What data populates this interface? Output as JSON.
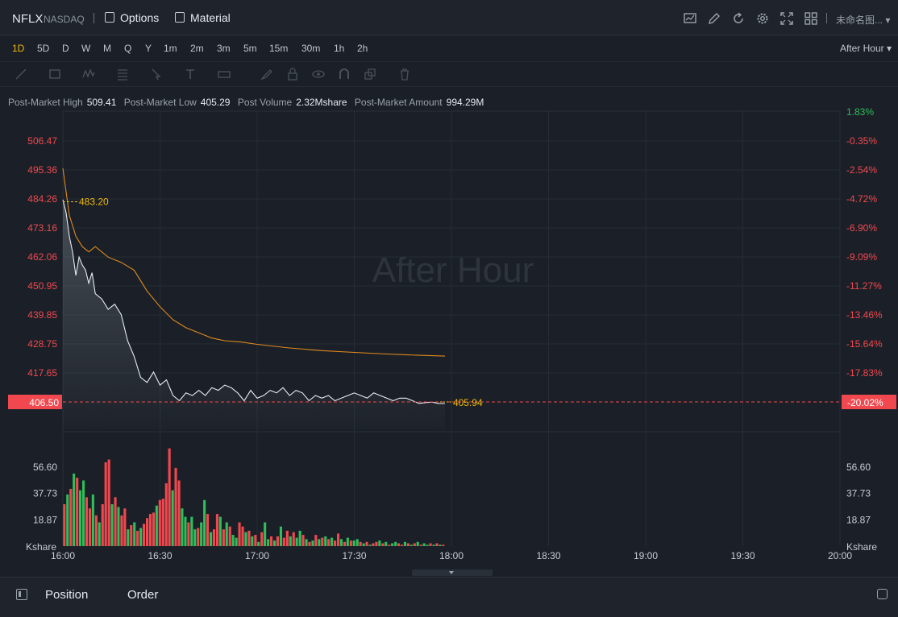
{
  "header": {
    "symbol": "NFLX",
    "exchange": "NASDAQ",
    "options_label": "Options",
    "material_label": "Material",
    "layout_name": "未命名图...",
    "icons": [
      "chart-settings-icon",
      "edit-icon",
      "refresh-icon",
      "gear-icon",
      "fullscreen-icon",
      "layout-grid-icon"
    ]
  },
  "intervals": {
    "items": [
      "1D",
      "5D",
      "D",
      "W",
      "M",
      "Q",
      "Y",
      "1m",
      "2m",
      "3m",
      "5m",
      "15m",
      "30m",
      "1h",
      "2h"
    ],
    "active": "1D",
    "session": "After Hour"
  },
  "stats": {
    "high_label": "Post-Market High",
    "high_value": "509.41",
    "low_label": "Post-Market Low",
    "low_value": "405.29",
    "volume_label": "Post Volume",
    "volume_value": "2.32Mshare",
    "amount_label": "Post-Market Amount",
    "amount_value": "994.29M"
  },
  "bottom": {
    "tabs": [
      "Position",
      "Order"
    ]
  },
  "colors": {
    "up": "#2fbe5a",
    "down": "#f0484e",
    "price_line": "#e8ecf0",
    "avg_line": "#e08a1e",
    "accent": "#f0b90b"
  },
  "chart_data": {
    "type": "line",
    "watermark": "After Hour",
    "price_axis": {
      "ticks": [
        "506.47",
        "495.36",
        "484.26",
        "473.16",
        "462.06",
        "450.95",
        "439.85",
        "428.75",
        "417.65"
      ],
      "range": [
        408,
        515
      ],
      "current_price": "406.50"
    },
    "percent_axis": {
      "ticks": [
        "1.83%",
        "-0.35%",
        "-2.54%",
        "-4.72%",
        "-6.90%",
        "-9.09%",
        "-11.27%",
        "-13.46%",
        "-15.64%",
        "-17.83%"
      ],
      "current": "-20.02%"
    },
    "time_axis": {
      "ticks": [
        "16:00",
        "16:30",
        "17:00",
        "17:30",
        "18:00",
        "18:30",
        "19:00",
        "19:30",
        "20:00"
      ],
      "range_minutes": [
        0,
        240
      ]
    },
    "annotations": {
      "open_label": "483.20",
      "last_label": "405.94"
    },
    "series": [
      {
        "x": [
          0,
          1,
          2,
          3,
          4,
          5,
          6,
          7,
          8,
          9,
          10,
          12,
          14,
          16,
          18,
          20,
          22,
          24,
          26,
          28,
          30,
          32,
          34,
          36,
          38,
          40,
          42,
          44,
          46,
          48,
          50,
          52,
          54,
          56,
          58,
          60,
          62,
          64,
          66,
          68,
          70,
          72,
          74,
          76,
          78,
          80,
          82,
          84,
          86,
          88,
          90,
          92,
          94,
          96,
          98,
          100,
          102,
          104,
          106,
          108,
          110,
          112,
          114,
          116,
          118
        ],
        "y": [
          484,
          479,
          470,
          464,
          455,
          462,
          459,
          457,
          452,
          456,
          448,
          446,
          442,
          444,
          440,
          430,
          424,
          416,
          414,
          418,
          413,
          415,
          409,
          407,
          410,
          409,
          411,
          409,
          412,
          411,
          413,
          412,
          410,
          407,
          411,
          408,
          409,
          411,
          410,
          412,
          409,
          411,
          410,
          407,
          409,
          408,
          409,
          407,
          408,
          409,
          410,
          409,
          408,
          410,
          409,
          408,
          407,
          408,
          408,
          407,
          406,
          406.3,
          406.5,
          406,
          405.94
        ]
      },
      {
        "x": [
          0,
          2,
          4,
          6,
          8,
          10,
          14,
          18,
          22,
          26,
          30,
          34,
          38,
          42,
          46,
          50,
          55,
          60,
          70,
          80,
          90,
          100,
          110,
          118
        ],
        "y": [
          496,
          478,
          470,
          466,
          464,
          466,
          462,
          460,
          457,
          449,
          443,
          438,
          435,
          433,
          431,
          430,
          429.5,
          428.6,
          427.2,
          426.2,
          425.5,
          424.9,
          424.4,
          424.1
        ]
      }
    ],
    "volume": {
      "axis_ticks": [
        "56.60",
        "37.73",
        "18.87"
      ],
      "unit_label": "Kshare",
      "max": 75,
      "values": [
        30,
        37,
        41,
        52,
        49,
        40,
        47,
        35,
        27,
        37,
        22,
        17,
        30,
        60,
        62,
        30,
        35,
        28,
        22,
        27,
        12,
        15,
        17,
        11,
        13,
        16,
        20,
        23,
        24,
        29,
        33,
        34,
        45,
        70,
        40,
        56,
        47,
        27,
        21,
        17,
        21,
        12,
        13,
        17,
        33,
        23,
        10,
        12,
        23,
        21,
        12,
        17,
        14,
        8,
        6,
        17,
        14,
        10,
        11,
        7,
        8,
        3,
        10,
        17,
        5,
        7,
        4,
        7,
        14,
        6,
        11,
        7,
        10,
        6,
        11,
        8,
        5,
        3,
        4,
        8,
        5,
        6,
        7,
        5,
        6,
        4,
        9,
        5,
        3,
        6,
        4,
        4,
        5,
        3,
        2,
        3,
        1,
        2,
        3,
        4,
        2,
        3,
        1,
        2,
        3,
        2,
        1,
        3,
        2,
        1,
        2,
        3,
        1,
        2,
        1,
        2,
        1,
        2,
        1,
        1
      ],
      "colors_up": [
        0,
        1,
        0,
        1,
        0,
        1,
        1,
        0,
        0,
        1,
        0,
        1,
        0,
        0,
        0,
        1,
        0,
        1,
        0,
        0,
        1,
        0,
        1,
        0,
        1,
        0,
        0,
        0,
        0,
        1,
        0,
        0,
        0,
        0,
        1,
        0,
        0,
        1,
        1,
        0,
        1,
        1,
        0,
        1,
        1,
        0,
        1,
        0,
        0,
        1,
        0,
        1,
        0,
        1,
        1,
        0,
        0,
        1,
        0,
        1,
        0,
        1,
        0,
        1,
        1,
        0,
        1,
        0,
        1,
        0,
        0,
        1,
        0,
        1,
        1,
        0,
        1,
        0,
        1,
        0,
        1,
        0,
        1,
        0,
        1,
        0,
        0,
        1,
        0,
        1,
        0,
        1,
        1,
        0,
        1,
        0,
        1,
        0,
        0,
        1,
        0,
        1,
        0,
        1,
        1,
        0,
        0,
        1,
        0,
        1,
        0,
        1,
        0,
        1,
        1,
        0,
        1,
        0,
        1,
        0
      ]
    }
  }
}
